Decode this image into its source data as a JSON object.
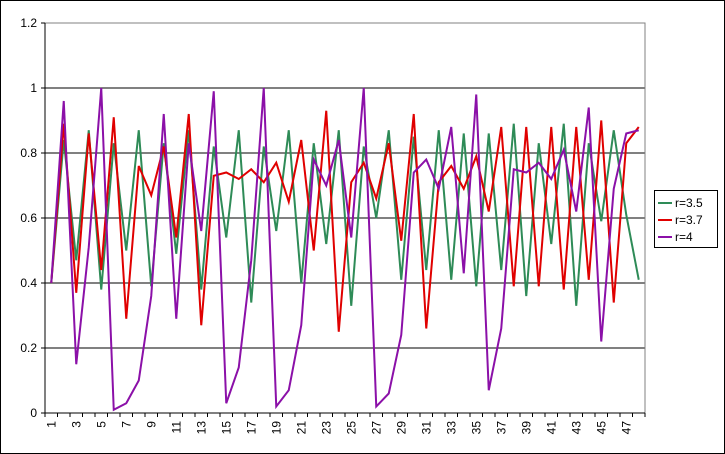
{
  "chart_data": {
    "type": "line",
    "title": "",
    "xlabel": "",
    "ylabel": "",
    "x": [
      1,
      2,
      3,
      4,
      5,
      6,
      7,
      8,
      9,
      10,
      11,
      12,
      13,
      14,
      15,
      16,
      17,
      18,
      19,
      20,
      21,
      22,
      23,
      24,
      25,
      26,
      27,
      28,
      29,
      30,
      31,
      32,
      33,
      34,
      35,
      36,
      37,
      38,
      39,
      40,
      41,
      42,
      43,
      44,
      45,
      46,
      47,
      48
    ],
    "x_tick_labels": [
      "1",
      "3",
      "5",
      "7",
      "9",
      "11",
      "13",
      "15",
      "17",
      "19",
      "21",
      "23",
      "25",
      "27",
      "29",
      "31",
      "33",
      "35",
      "37",
      "39",
      "41",
      "43",
      "45",
      "47"
    ],
    "ylim": [
      0,
      1.2
    ],
    "y_tick_labels": [
      "0",
      "0.2",
      "0.4",
      "0.6",
      "0.8",
      "1",
      "1.2"
    ],
    "y_ticks": [
      0,
      0.2,
      0.4,
      0.6,
      0.8,
      1.0,
      1.2
    ],
    "grid": true,
    "legend_position": "right",
    "series": [
      {
        "name": "r=3.5",
        "color": "#2e8b57",
        "values": [
          0.4,
          0.84,
          0.47,
          0.87,
          0.38,
          0.83,
          0.5,
          0.87,
          0.39,
          0.83,
          0.49,
          0.87,
          0.38,
          0.82,
          0.54,
          0.87,
          0.34,
          0.82,
          0.56,
          0.87,
          0.4,
          0.83,
          0.52,
          0.87,
          0.33,
          0.82,
          0.6,
          0.87,
          0.41,
          0.85,
          0.44,
          0.87,
          0.41,
          0.86,
          0.39,
          0.86,
          0.44,
          0.89,
          0.36,
          0.83,
          0.52,
          0.89,
          0.33,
          0.83,
          0.59,
          0.87,
          0.61,
          0.41
        ]
      },
      {
        "name": "r=3.7",
        "color": "#e00000",
        "values": [
          0.4,
          0.89,
          0.37,
          0.86,
          0.44,
          0.91,
          0.29,
          0.76,
          0.67,
          0.82,
          0.54,
          0.92,
          0.27,
          0.73,
          0.74,
          0.72,
          0.75,
          0.71,
          0.77,
          0.65,
          0.84,
          0.5,
          0.93,
          0.25,
          0.71,
          0.77,
          0.66,
          0.83,
          0.53,
          0.92,
          0.26,
          0.71,
          0.76,
          0.69,
          0.79,
          0.62,
          0.88,
          0.39,
          0.88,
          0.39,
          0.88,
          0.38,
          0.88,
          0.41,
          0.9,
          0.34,
          0.83,
          0.88
        ]
      },
      {
        "name": "r=4",
        "color": "#8b10a8",
        "values": [
          0.4,
          0.96,
          0.15,
          0.51,
          1.0,
          0.01,
          0.03,
          0.1,
          0.36,
          0.92,
          0.29,
          0.83,
          0.56,
          0.99,
          0.03,
          0.14,
          0.47,
          1.0,
          0.02,
          0.07,
          0.27,
          0.78,
          0.7,
          0.84,
          0.54,
          1.0,
          0.02,
          0.06,
          0.24,
          0.74,
          0.78,
          0.69,
          0.88,
          0.43,
          0.98,
          0.07,
          0.26,
          0.75,
          0.74,
          0.77,
          0.72,
          0.81,
          0.62,
          0.94,
          0.22,
          0.69,
          0.86,
          0.87
        ]
      }
    ]
  }
}
